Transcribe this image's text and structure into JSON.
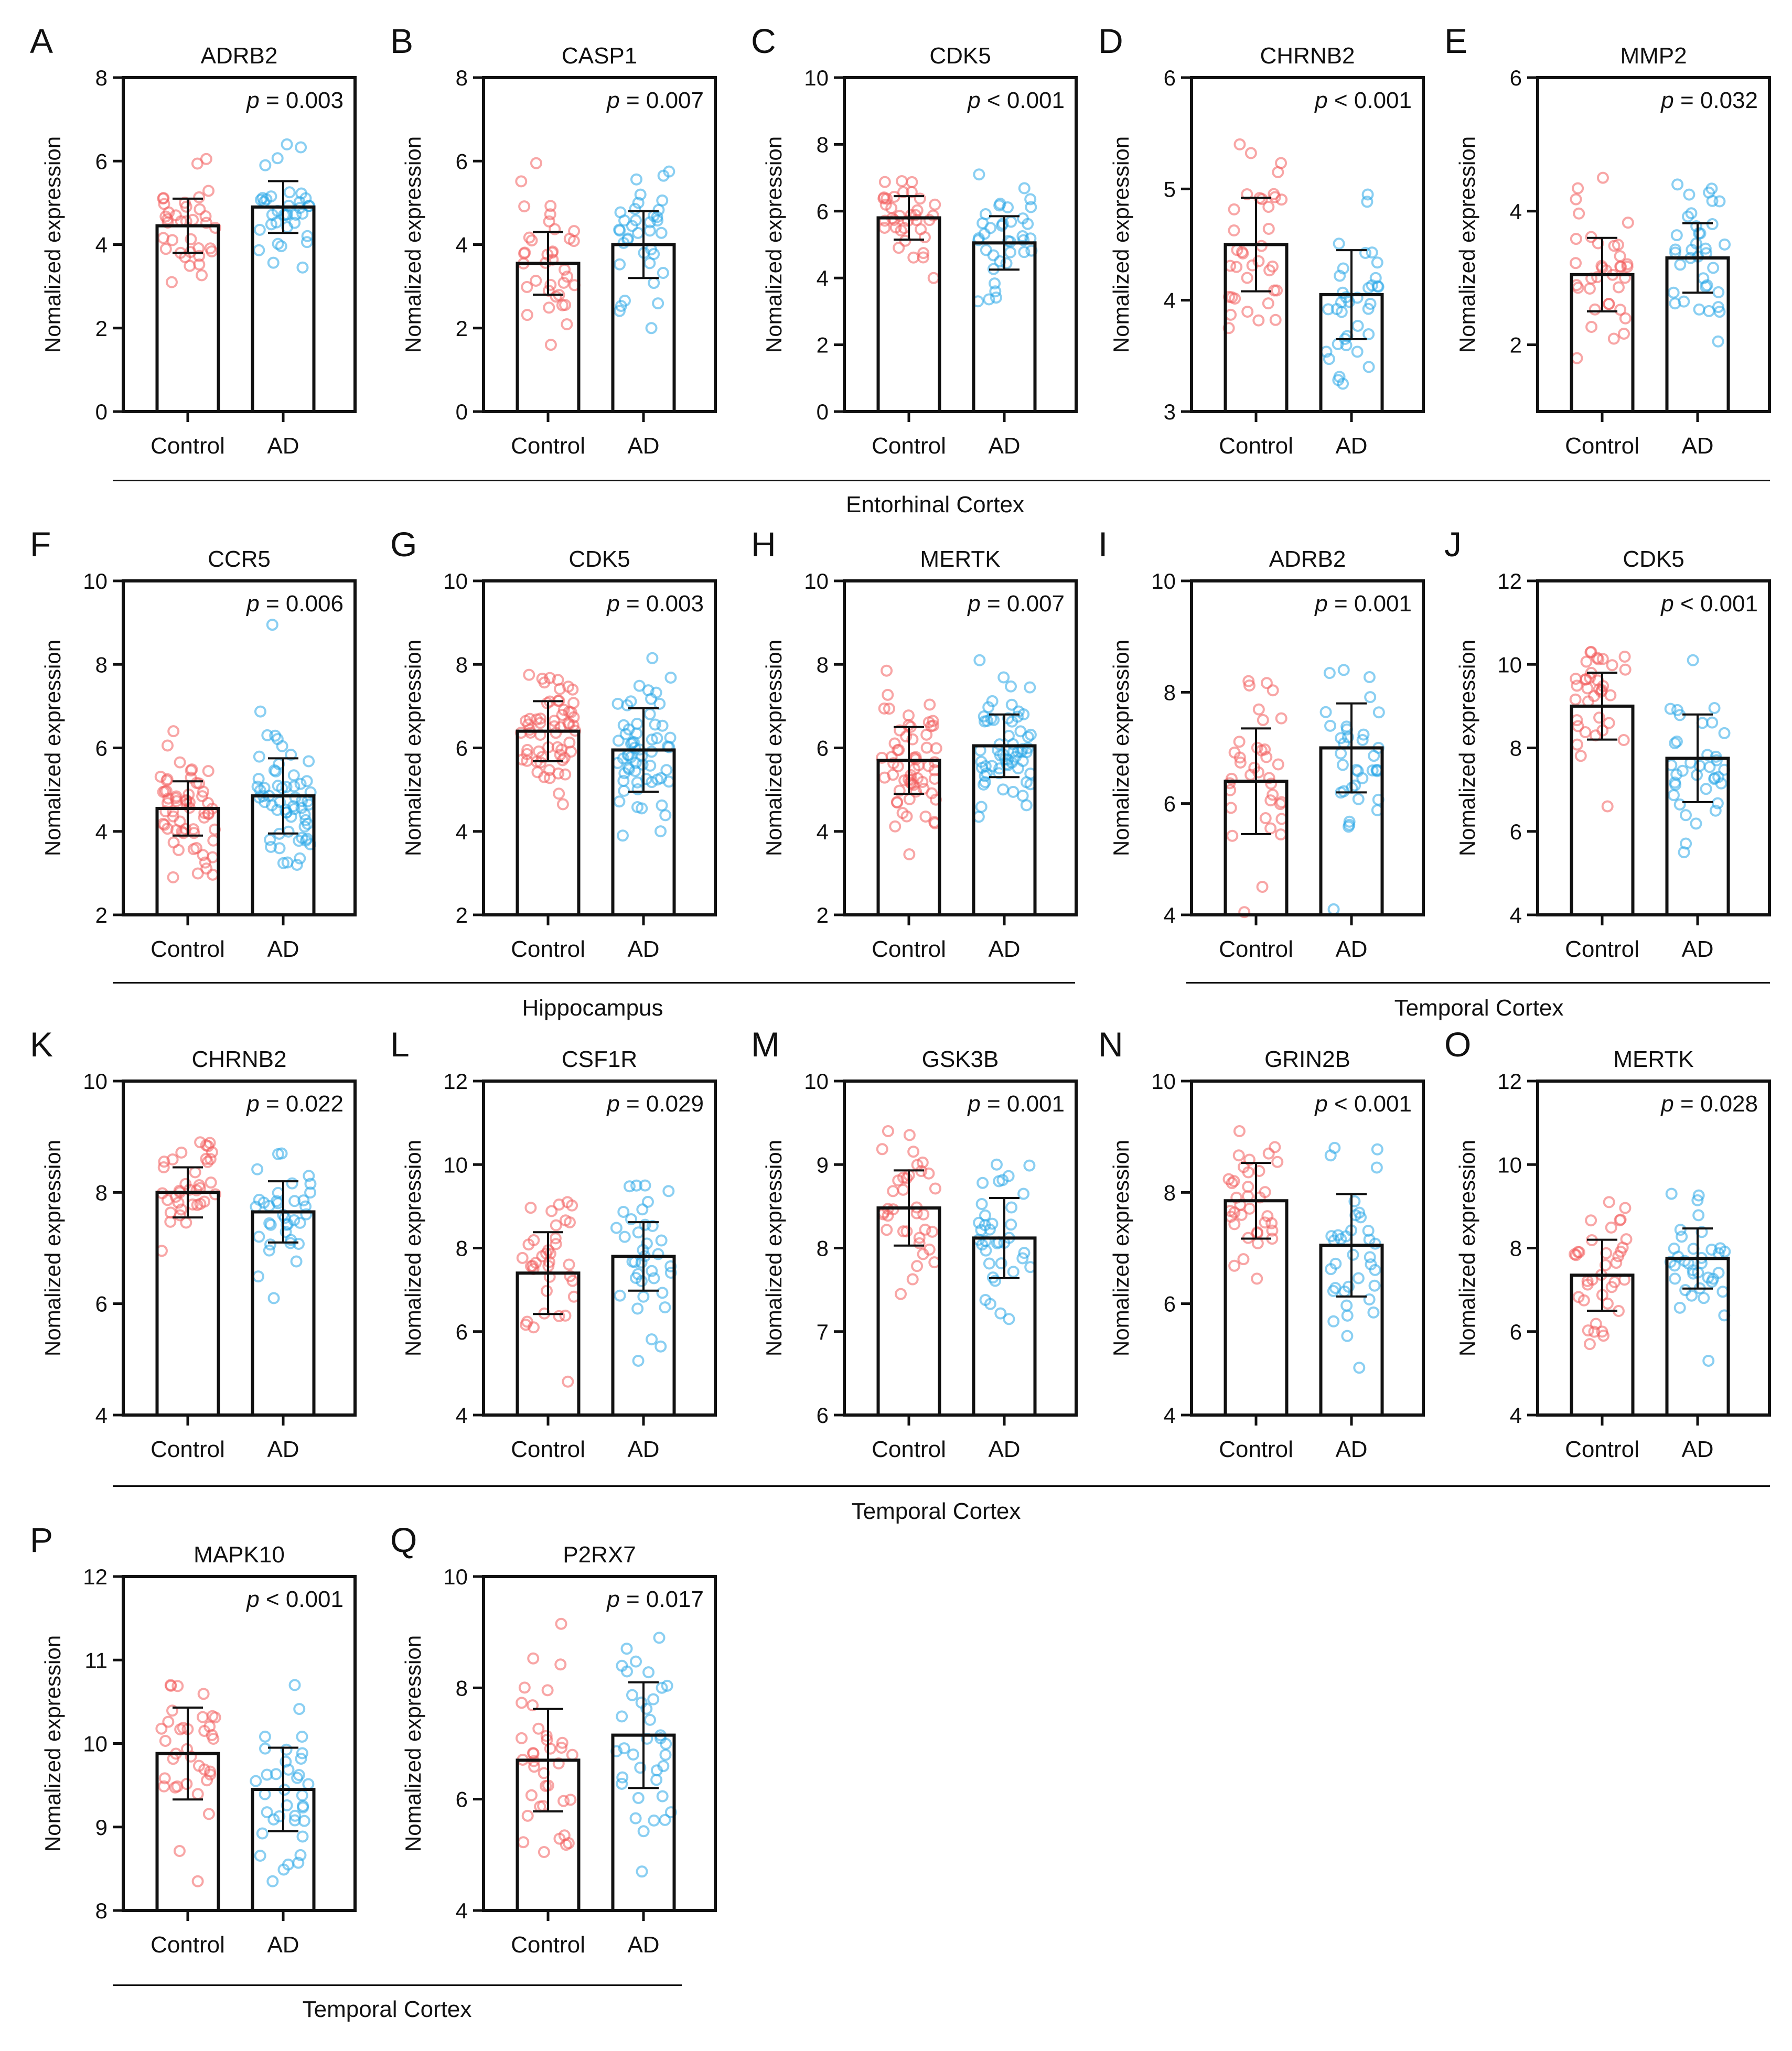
{
  "figure": {
    "ylabel": "Nomalized expression",
    "categories": [
      "Control",
      "AD"
    ],
    "control_color": "#f25c5c",
    "ad_color": "#2aa7e8",
    "point_counts": {
      "short": 36,
      "long": 60
    }
  },
  "groups": [
    {
      "label": "Entorhinal Cortex"
    },
    {
      "label": "Hippocampus"
    },
    {
      "label": "Temporal Cortex"
    },
    {
      "label": "Temporal Cortex"
    },
    {
      "label": "Temporal Cortex"
    }
  ],
  "chart_data": [
    {
      "type": "bar",
      "panel": "A",
      "title": "ADRB2",
      "p_text": "p = 0.003",
      "p_prefix": "p",
      "p_rest": " = 0.003",
      "ylim": [
        0,
        8
      ],
      "yticks": [
        0,
        2,
        4,
        6,
        8
      ],
      "series": [
        {
          "name": "Control",
          "mean": 4.45,
          "sd": 0.65,
          "min": 3.1,
          "max": 6.05
        },
        {
          "name": "AD",
          "mean": 4.9,
          "sd": 0.62,
          "min": 3.45,
          "max": 6.4
        }
      ]
    },
    {
      "type": "bar",
      "panel": "B",
      "title": "CASP1",
      "p_text": "p = 0.007",
      "p_prefix": "p",
      "p_rest": " = 0.007",
      "ylim": [
        0,
        8
      ],
      "yticks": [
        0,
        2,
        4,
        6,
        8
      ],
      "series": [
        {
          "name": "Control",
          "mean": 3.55,
          "sd": 0.75,
          "min": 1.6,
          "max": 5.95
        },
        {
          "name": "AD",
          "mean": 4.0,
          "sd": 0.8,
          "min": 2.0,
          "max": 5.75
        }
      ]
    },
    {
      "type": "bar",
      "panel": "C",
      "title": "CDK5",
      "p_text": "p < 0.001",
      "p_prefix": "p",
      "p_rest": " < 0.001",
      "ylim": [
        0,
        10
      ],
      "yticks": [
        0,
        2,
        4,
        6,
        8,
        10
      ],
      "series": [
        {
          "name": "Control",
          "mean": 5.8,
          "sd": 0.65,
          "min": 4.0,
          "max": 6.9
        },
        {
          "name": "AD",
          "mean": 5.05,
          "sd": 0.8,
          "min": 3.3,
          "max": 7.1
        }
      ]
    },
    {
      "type": "bar",
      "panel": "D",
      "title": "CHRNB2",
      "p_text": "p < 0.001",
      "p_prefix": "p",
      "p_rest": " < 0.001",
      "ylim": [
        3,
        6
      ],
      "yticks": [
        3,
        4,
        5,
        6
      ],
      "series": [
        {
          "name": "Control",
          "mean": 4.5,
          "sd": 0.42,
          "min": 3.75,
          "max": 5.4
        },
        {
          "name": "AD",
          "mean": 4.05,
          "sd": 0.4,
          "min": 3.25,
          "max": 4.95
        }
      ]
    },
    {
      "type": "bar",
      "panel": "E",
      "title": "MMP2",
      "p_text": "p = 0.032",
      "p_prefix": "p",
      "p_rest": " = 0.032",
      "ylim": [
        1,
        6
      ],
      "yticks": [
        2,
        4,
        6
      ],
      "ytick_labels_at": [
        2,
        4,
        6
      ],
      "series": [
        {
          "name": "Control",
          "mean": 3.05,
          "sd": 0.55,
          "min": 1.8,
          "max": 4.5
        },
        {
          "name": "AD",
          "mean": 3.3,
          "sd": 0.52,
          "min": 2.05,
          "max": 4.4
        }
      ]
    },
    {
      "type": "bar",
      "panel": "F",
      "title": "CCR5",
      "p_text": "p = 0.006",
      "p_prefix": "p",
      "p_rest": " = 0.006",
      "ylim": [
        2,
        10
      ],
      "yticks": [
        2,
        4,
        6,
        8,
        10
      ],
      "dense": true,
      "series": [
        {
          "name": "Control",
          "mean": 4.55,
          "sd": 0.65,
          "min": 2.9,
          "max": 6.4
        },
        {
          "name": "AD",
          "mean": 4.85,
          "sd": 0.9,
          "min": 3.2,
          "max": 8.95
        }
      ]
    },
    {
      "type": "bar",
      "panel": "G",
      "title": "CDK5",
      "p_text": "p = 0.003",
      "p_prefix": "p",
      "p_rest": " = 0.003",
      "ylim": [
        2,
        10
      ],
      "yticks": [
        2,
        4,
        6,
        8,
        10
      ],
      "dense": true,
      "series": [
        {
          "name": "Control",
          "mean": 6.4,
          "sd": 0.72,
          "min": 4.65,
          "max": 7.75
        },
        {
          "name": "AD",
          "mean": 5.95,
          "sd": 1.0,
          "min": 3.9,
          "max": 8.15
        }
      ]
    },
    {
      "type": "bar",
      "panel": "H",
      "title": "MERTK",
      "p_text": "p = 0.007",
      "p_prefix": "p",
      "p_rest": " = 0.007",
      "ylim": [
        2,
        10
      ],
      "yticks": [
        2,
        4,
        6,
        8,
        10
      ],
      "dense": true,
      "series": [
        {
          "name": "Control",
          "mean": 5.7,
          "sd": 0.8,
          "min": 3.45,
          "max": 7.85
        },
        {
          "name": "AD",
          "mean": 6.05,
          "sd": 0.75,
          "min": 4.35,
          "max": 8.1
        }
      ]
    },
    {
      "type": "bar",
      "panel": "I",
      "title": "ADRB2",
      "p_text": "p = 0.001",
      "p_prefix": "p",
      "p_rest": " = 0.001",
      "ylim": [
        4,
        10
      ],
      "yticks": [
        4,
        6,
        8,
        10
      ],
      "series": [
        {
          "name": "Control",
          "mean": 6.4,
          "sd": 0.95,
          "min": 4.05,
          "max": 8.2
        },
        {
          "name": "AD",
          "mean": 7.0,
          "sd": 0.8,
          "min": 4.1,
          "max": 8.4
        }
      ]
    },
    {
      "type": "bar",
      "panel": "J",
      "title": "CDK5",
      "p_text": "p < 0.001",
      "p_prefix": "p",
      "p_rest": " < 0.001",
      "ylim": [
        4,
        12
      ],
      "yticks": [
        4,
        6,
        8,
        10,
        12
      ],
      "series": [
        {
          "name": "Control",
          "mean": 9.0,
          "sd": 0.8,
          "min": 6.6,
          "max": 10.3
        },
        {
          "name": "AD",
          "mean": 7.75,
          "sd": 1.05,
          "min": 5.5,
          "max": 10.1
        }
      ]
    },
    {
      "type": "bar",
      "panel": "K",
      "title": "CHRNB2",
      "p_text": "p = 0.022",
      "p_prefix": "p",
      "p_rest": " = 0.022",
      "ylim": [
        4,
        10
      ],
      "yticks": [
        4,
        6,
        8,
        10
      ],
      "series": [
        {
          "name": "Control",
          "mean": 8.0,
          "sd": 0.45,
          "min": 6.95,
          "max": 8.9
        },
        {
          "name": "AD",
          "mean": 7.65,
          "sd": 0.55,
          "min": 6.1,
          "max": 8.7
        }
      ]
    },
    {
      "type": "bar",
      "panel": "L",
      "title": "CSF1R",
      "p_text": "p = 0.029",
      "p_prefix": "p",
      "p_rest": " = 0.029",
      "ylim": [
        4,
        12
      ],
      "yticks": [
        4,
        6,
        8,
        10,
        12
      ],
      "series": [
        {
          "name": "Control",
          "mean": 7.4,
          "sd": 0.98,
          "min": 4.8,
          "max": 9.1
        },
        {
          "name": "AD",
          "mean": 7.8,
          "sd": 0.82,
          "min": 5.3,
          "max": 9.5
        }
      ]
    },
    {
      "type": "bar",
      "panel": "M",
      "title": "GSK3B",
      "p_text": "p = 0.001",
      "p_prefix": "p",
      "p_rest": " = 0.001",
      "ylim": [
        6,
        10
      ],
      "yticks": [
        6,
        7,
        8,
        9,
        10
      ],
      "series": [
        {
          "name": "Control",
          "mean": 8.48,
          "sd": 0.45,
          "min": 7.45,
          "max": 9.4
        },
        {
          "name": "AD",
          "mean": 8.12,
          "sd": 0.48,
          "min": 7.15,
          "max": 9.0
        }
      ]
    },
    {
      "type": "bar",
      "panel": "N",
      "title": "GRIN2B",
      "p_text": "p < 0.001",
      "p_prefix": "p",
      "p_rest": " < 0.001",
      "ylim": [
        4,
        10
      ],
      "yticks": [
        4,
        6,
        8,
        10
      ],
      "series": [
        {
          "name": "Control",
          "mean": 7.85,
          "sd": 0.68,
          "min": 6.45,
          "max": 9.1
        },
        {
          "name": "AD",
          "mean": 7.05,
          "sd": 0.92,
          "min": 4.85,
          "max": 8.8
        }
      ]
    },
    {
      "type": "bar",
      "panel": "O",
      "title": "MERTK",
      "p_text": "p = 0.028",
      "p_prefix": "p",
      "p_rest": " = 0.028",
      "ylim": [
        4,
        12
      ],
      "yticks": [
        4,
        6,
        8,
        10,
        12
      ],
      "series": [
        {
          "name": "Control",
          "mean": 7.35,
          "sd": 0.85,
          "min": 5.7,
          "max": 9.1
        },
        {
          "name": "AD",
          "mean": 7.75,
          "sd": 0.72,
          "min": 5.3,
          "max": 9.3
        }
      ]
    },
    {
      "type": "bar",
      "panel": "P",
      "title": "MAPK10",
      "p_text": "p < 0.001",
      "p_prefix": "p",
      "p_rest": " < 0.001",
      "ylim": [
        8,
        12
      ],
      "yticks": [
        8,
        9,
        10,
        11,
        12
      ],
      "series": [
        {
          "name": "Control",
          "mean": 9.88,
          "sd": 0.55,
          "min": 8.35,
          "max": 10.7
        },
        {
          "name": "AD",
          "mean": 9.45,
          "sd": 0.5,
          "min": 8.35,
          "max": 10.7
        }
      ]
    },
    {
      "type": "bar",
      "panel": "Q",
      "title": "P2RX7",
      "p_text": "p = 0.017",
      "p_prefix": "p",
      "p_rest": " = 0.017",
      "ylim": [
        4,
        10
      ],
      "yticks": [
        4,
        6,
        8,
        10
      ],
      "series": [
        {
          "name": "Control",
          "mean": 6.7,
          "sd": 0.92,
          "min": 5.05,
          "max": 9.15
        },
        {
          "name": "AD",
          "mean": 7.15,
          "sd": 0.95,
          "min": 4.7,
          "max": 8.9
        }
      ]
    }
  ]
}
